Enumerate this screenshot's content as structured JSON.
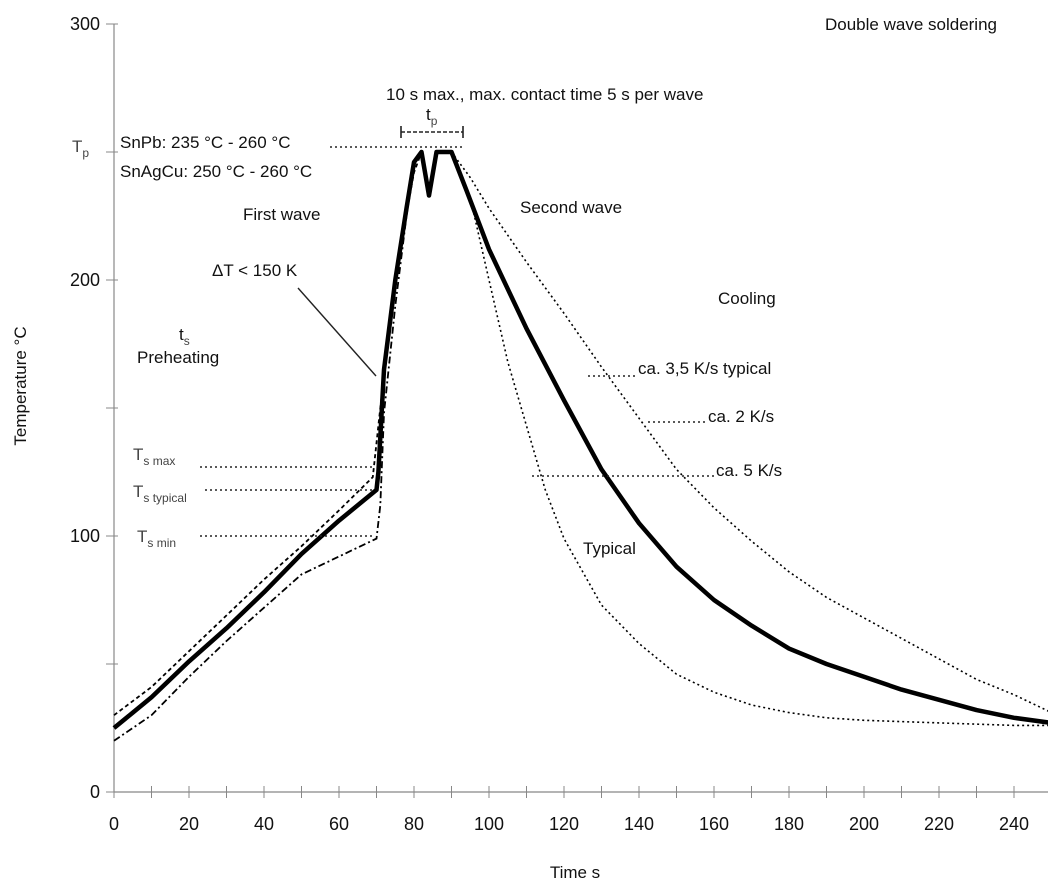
{
  "chart_data": {
    "type": "line",
    "title": "Double wave soldering",
    "xlabel": "Time   s",
    "ylabel": "Temperature   °C",
    "xlim": [
      0,
      250
    ],
    "ylim": [
      0,
      300
    ],
    "x_ticks": [
      0,
      20,
      40,
      60,
      80,
      100,
      120,
      140,
      160,
      180,
      200,
      220,
      240
    ],
    "y_ticks": [
      0,
      100,
      200,
      300
    ],
    "grid": false,
    "series": [
      {
        "name": "Typical",
        "style": "solid-thick",
        "points": [
          [
            0,
            25
          ],
          [
            5,
            31
          ],
          [
            10,
            37
          ],
          [
            20,
            51
          ],
          [
            30,
            64
          ],
          [
            40,
            78
          ],
          [
            50,
            93
          ],
          [
            60,
            106
          ],
          [
            70,
            118
          ],
          [
            70.5,
            125
          ],
          [
            72,
            165
          ],
          [
            75,
            200
          ],
          [
            78,
            228
          ],
          [
            80,
            246
          ],
          [
            82,
            250
          ],
          [
            84,
            233
          ],
          [
            86,
            250
          ],
          [
            90,
            250
          ],
          [
            94,
            235
          ],
          [
            100,
            212
          ],
          [
            110,
            181
          ],
          [
            120,
            153
          ],
          [
            130,
            126
          ],
          [
            140,
            105
          ],
          [
            150,
            88
          ],
          [
            160,
            75
          ],
          [
            170,
            65
          ],
          [
            180,
            56
          ],
          [
            190,
            50
          ],
          [
            200,
            45
          ],
          [
            210,
            40
          ],
          [
            220,
            36
          ],
          [
            230,
            32
          ],
          [
            240,
            29
          ],
          [
            250,
            27
          ]
        ]
      },
      {
        "style": "dashed-upper-preheat",
        "points": [
          [
            0,
            30
          ],
          [
            10,
            41
          ],
          [
            20,
            55
          ],
          [
            30,
            69
          ],
          [
            40,
            83
          ],
          [
            50,
            96
          ],
          [
            60,
            110
          ],
          [
            69,
            123
          ],
          [
            71,
            150
          ],
          [
            74,
            188
          ],
          [
            77,
            218
          ],
          [
            80,
            242
          ],
          [
            82,
            250
          ]
        ]
      },
      {
        "style": "dashed-lower-preheat",
        "points": [
          [
            0,
            20
          ],
          [
            10,
            30
          ],
          [
            20,
            45
          ],
          [
            30,
            59
          ],
          [
            40,
            72
          ],
          [
            50,
            85
          ],
          [
            60,
            92
          ],
          [
            70,
            99
          ],
          [
            71,
            112
          ],
          [
            72,
            148
          ],
          [
            75,
            190
          ],
          [
            78,
            225
          ],
          [
            80,
            245
          ],
          [
            82,
            250
          ]
        ]
      },
      {
        "name": "ca. 2 K/s",
        "style": "dotted-slow-cooling",
        "points": [
          [
            90,
            250
          ],
          [
            95,
            240
          ],
          [
            100,
            228
          ],
          [
            110,
            207
          ],
          [
            120,
            187
          ],
          [
            130,
            166
          ],
          [
            140,
            146
          ],
          [
            150,
            126
          ],
          [
            160,
            111
          ],
          [
            170,
            98
          ],
          [
            180,
            86
          ],
          [
            190,
            76
          ],
          [
            200,
            68
          ],
          [
            210,
            60
          ],
          [
            220,
            52
          ],
          [
            230,
            44
          ],
          [
            240,
            38
          ],
          [
            250,
            31
          ]
        ]
      },
      {
        "name": "ca. 5 K/s",
        "style": "dotted-fast-cooling",
        "points": [
          [
            90,
            250
          ],
          [
            95,
            232
          ],
          [
            100,
            200
          ],
          [
            105,
            168
          ],
          [
            110,
            143
          ],
          [
            115,
            118
          ],
          [
            120,
            99
          ],
          [
            130,
            73
          ],
          [
            140,
            58
          ],
          [
            150,
            46
          ],
          [
            160,
            39
          ],
          [
            170,
            34
          ],
          [
            180,
            31
          ],
          [
            190,
            29
          ],
          [
            200,
            28
          ],
          [
            220,
            27
          ],
          [
            240,
            26
          ],
          [
            250,
            26
          ]
        ]
      }
    ],
    "annotations": {
      "ts": "t",
      "ts_sub": "s",
      "preheating": "Preheating",
      "tp_axis": "T",
      "tp_axis_sub": "p",
      "snpb": "SnPb: 235 °C - 260 °C",
      "snagcu": "SnAgCu: 250 °C - 260 °C",
      "first_wave": "First wave",
      "second_wave": "Second wave",
      "delta_t": "ΔT < 150 K",
      "contact_time": "10 s max., max. contact time 5 s per wave",
      "tp_top": "t",
      "tp_top_sub": "p",
      "cooling": "Cooling",
      "rate_typical": "ca. 3,5 K/s typical",
      "rate_2": "ca. 2 K/s",
      "rate_5": "ca. 5 K/s",
      "typical": "Typical",
      "tsmax": "T",
      "tsmax_sub": "s max",
      "tstyp": "T",
      "tstyp_sub": "s typical",
      "tsmin": "T",
      "tsmin_sub": "s min"
    }
  }
}
